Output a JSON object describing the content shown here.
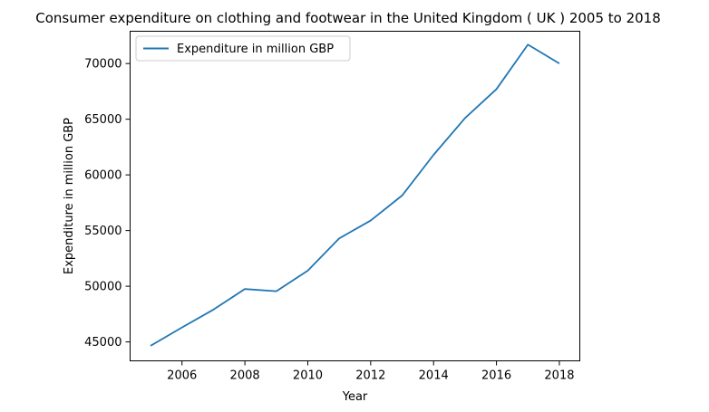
{
  "chart_data": {
    "type": "line",
    "title": "Consumer expenditure on clothing and footwear in the United Kingdom ( UK ) 2005 to 2018",
    "xlabel": "Year",
    "ylabel": "Expenditure in million GBP",
    "x": [
      2005,
      2006,
      2007,
      2008,
      2009,
      2010,
      2011,
      2012,
      2013,
      2014,
      2015,
      2016,
      2017,
      2018
    ],
    "series": [
      {
        "name": "Expenditure in million GBP",
        "color": "#1f77b4",
        "values": [
          44650,
          46300,
          47900,
          49750,
          49550,
          51400,
          54300,
          55900,
          58150,
          61800,
          65100,
          67700,
          71700,
          70000
        ]
      }
    ],
    "xlim": [
      2004.35,
      2018.65
    ],
    "ylim": [
      43300,
      72900
    ],
    "xticks": [
      2006,
      2008,
      2010,
      2012,
      2014,
      2016,
      2018
    ],
    "yticks": [
      45000,
      50000,
      55000,
      60000,
      65000,
      70000
    ],
    "xtick_labels": [
      "2006",
      "2008",
      "2010",
      "2012",
      "2014",
      "2016",
      "2018"
    ],
    "ytick_labels": [
      "45000",
      "50000",
      "55000",
      "60000",
      "65000",
      "70000"
    ],
    "grid": false,
    "legend_position": "upper-left"
  }
}
